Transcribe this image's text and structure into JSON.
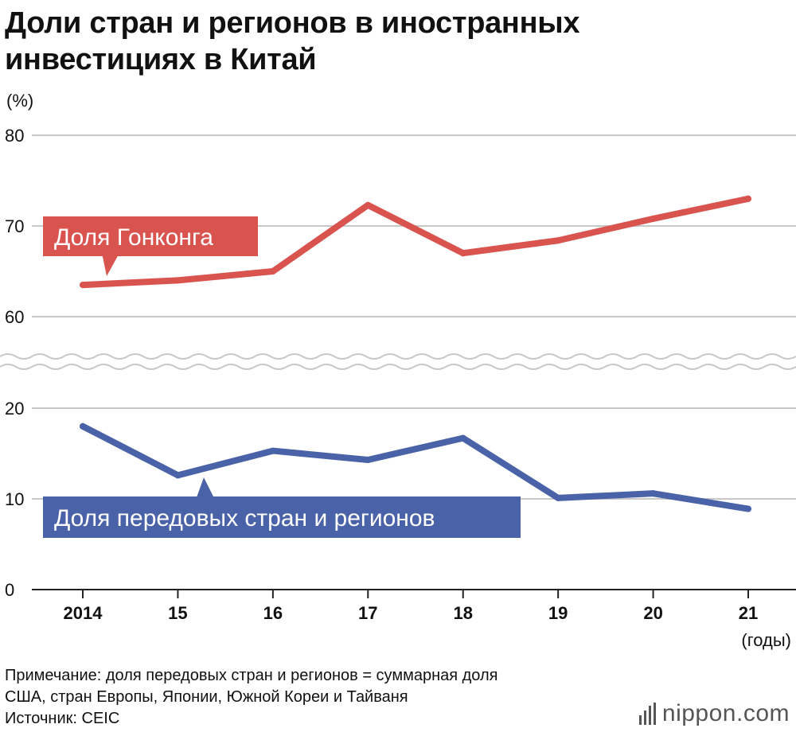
{
  "title_line1": "Доли стран и регионов в иностранных",
  "title_line2": "инвестициях в Китай",
  "unit_label": "(%)",
  "x_unit_label": "(годы)",
  "chart_data": {
    "type": "line",
    "title": "Доли стран и регионов в иностранных инвестициях в Китай",
    "ylabel": "(%)",
    "xlabel": "(годы)",
    "x": [
      "2014",
      "15",
      "16",
      "17",
      "18",
      "19",
      "20",
      "21"
    ],
    "y_ticks": [
      "0",
      "10",
      "20",
      "60",
      "70",
      "80"
    ],
    "y_axis_break": [
      20,
      60
    ],
    "grid": true,
    "series": [
      {
        "name": "Доля Гонконга",
        "color": "#d9534f",
        "values": [
          63.5,
          64.0,
          65.0,
          72.3,
          67.0,
          68.4,
          70.8,
          73.0
        ]
      },
      {
        "name": "Доля передовых стран и регионов",
        "color": "#4a62a8",
        "values": [
          18.0,
          12.6,
          15.3,
          14.3,
          16.7,
          10.1,
          10.6,
          8.9
        ]
      }
    ]
  },
  "note_line1": "Примечание: доля передовых стран и регионов = суммарная доля",
  "note_line2": "США, стран Европы, Японии, Южной Кореи и Тайваня",
  "source": "Источник: CEIC",
  "logo_text": "nippon.com"
}
